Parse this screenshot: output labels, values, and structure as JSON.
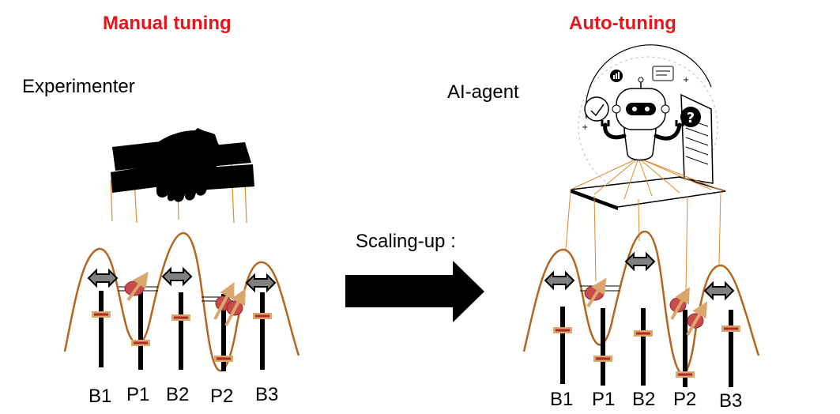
{
  "left": {
    "title": "Manual tuning",
    "operator_label": "Experimenter",
    "operator_icon": "hands-icon",
    "gates": [
      "B1",
      "P1",
      "B2",
      "P2",
      "B3"
    ]
  },
  "middle": {
    "label": "Scaling-up :",
    "arrow_icon": "right-arrow-icon"
  },
  "right": {
    "title": "Auto-tuning",
    "operator_label": "AI-agent",
    "operator_icon": "robot-laptop-icon",
    "gates": [
      "B1",
      "P1",
      "B2",
      "P2",
      "B3"
    ]
  },
  "colors": {
    "title": "#e8141b",
    "potential_curve": "#b5651d",
    "strings": "#e0892e",
    "slider_knob": "#c94a4a",
    "spin_arrow": "#d9a66b",
    "barrier_arrow": "#808080"
  }
}
